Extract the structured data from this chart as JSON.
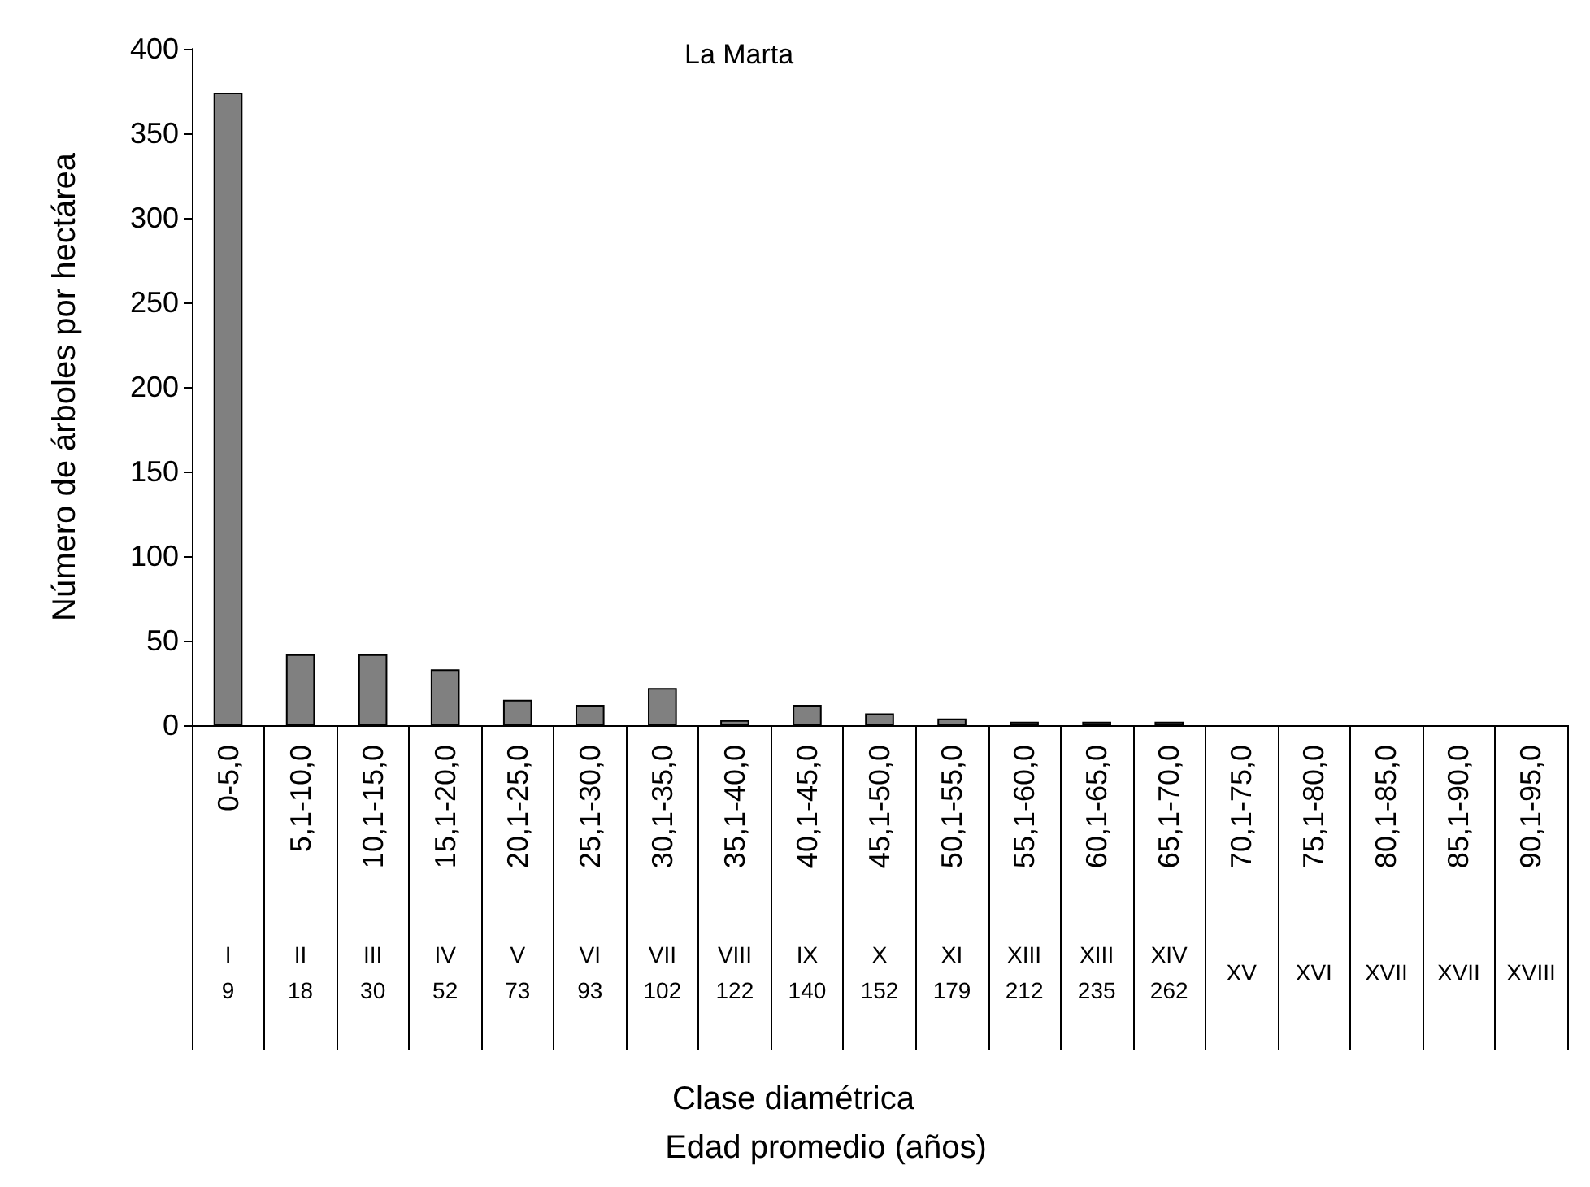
{
  "chart_data": {
    "type": "bar",
    "title": "La Marta",
    "ylabel": "Número de árboles por hectárea",
    "categories": [
      "0-5,0",
      "5,1-10,0",
      "10,1-15,0",
      "15,1-20,0",
      "20,1-25,0",
      "25,1-30,0",
      "30,1-35,0",
      "35,1-40,0",
      "40,1-45,0",
      "45,1-50,0",
      "50,1-55,0",
      "55,1-60,0",
      "60,1-65,0",
      "65,1-70,0",
      "70,1-75,0",
      "75,1-80,0",
      "80,1-85,0",
      "85,1-90,0",
      "90,1-95,0"
    ],
    "values": [
      374,
      42,
      42,
      33,
      15,
      12,
      22,
      3,
      12,
      7,
      4,
      2,
      2,
      2,
      0,
      0,
      0,
      0,
      0
    ],
    "color": "#808080",
    "ylim": [
      0,
      400
    ],
    "yticks": [
      0,
      50,
      100,
      150,
      200,
      250,
      300,
      350,
      400
    ],
    "annotations": [
      "I\n9",
      "II\n18",
      "III\n30",
      "IV\n52",
      "V\n73",
      "VI\n93",
      "VII\n102",
      "VIII\n122",
      "IX\n140",
      "X\n152",
      "XI\n179",
      "XIII\n212",
      "XIII\n235",
      "XIV\n262",
      "XV",
      "XVI",
      "XVII",
      "XVII",
      "XVIII",
      "Clase diamétrica",
      "Edad promedio (años)"
    ]
  }
}
